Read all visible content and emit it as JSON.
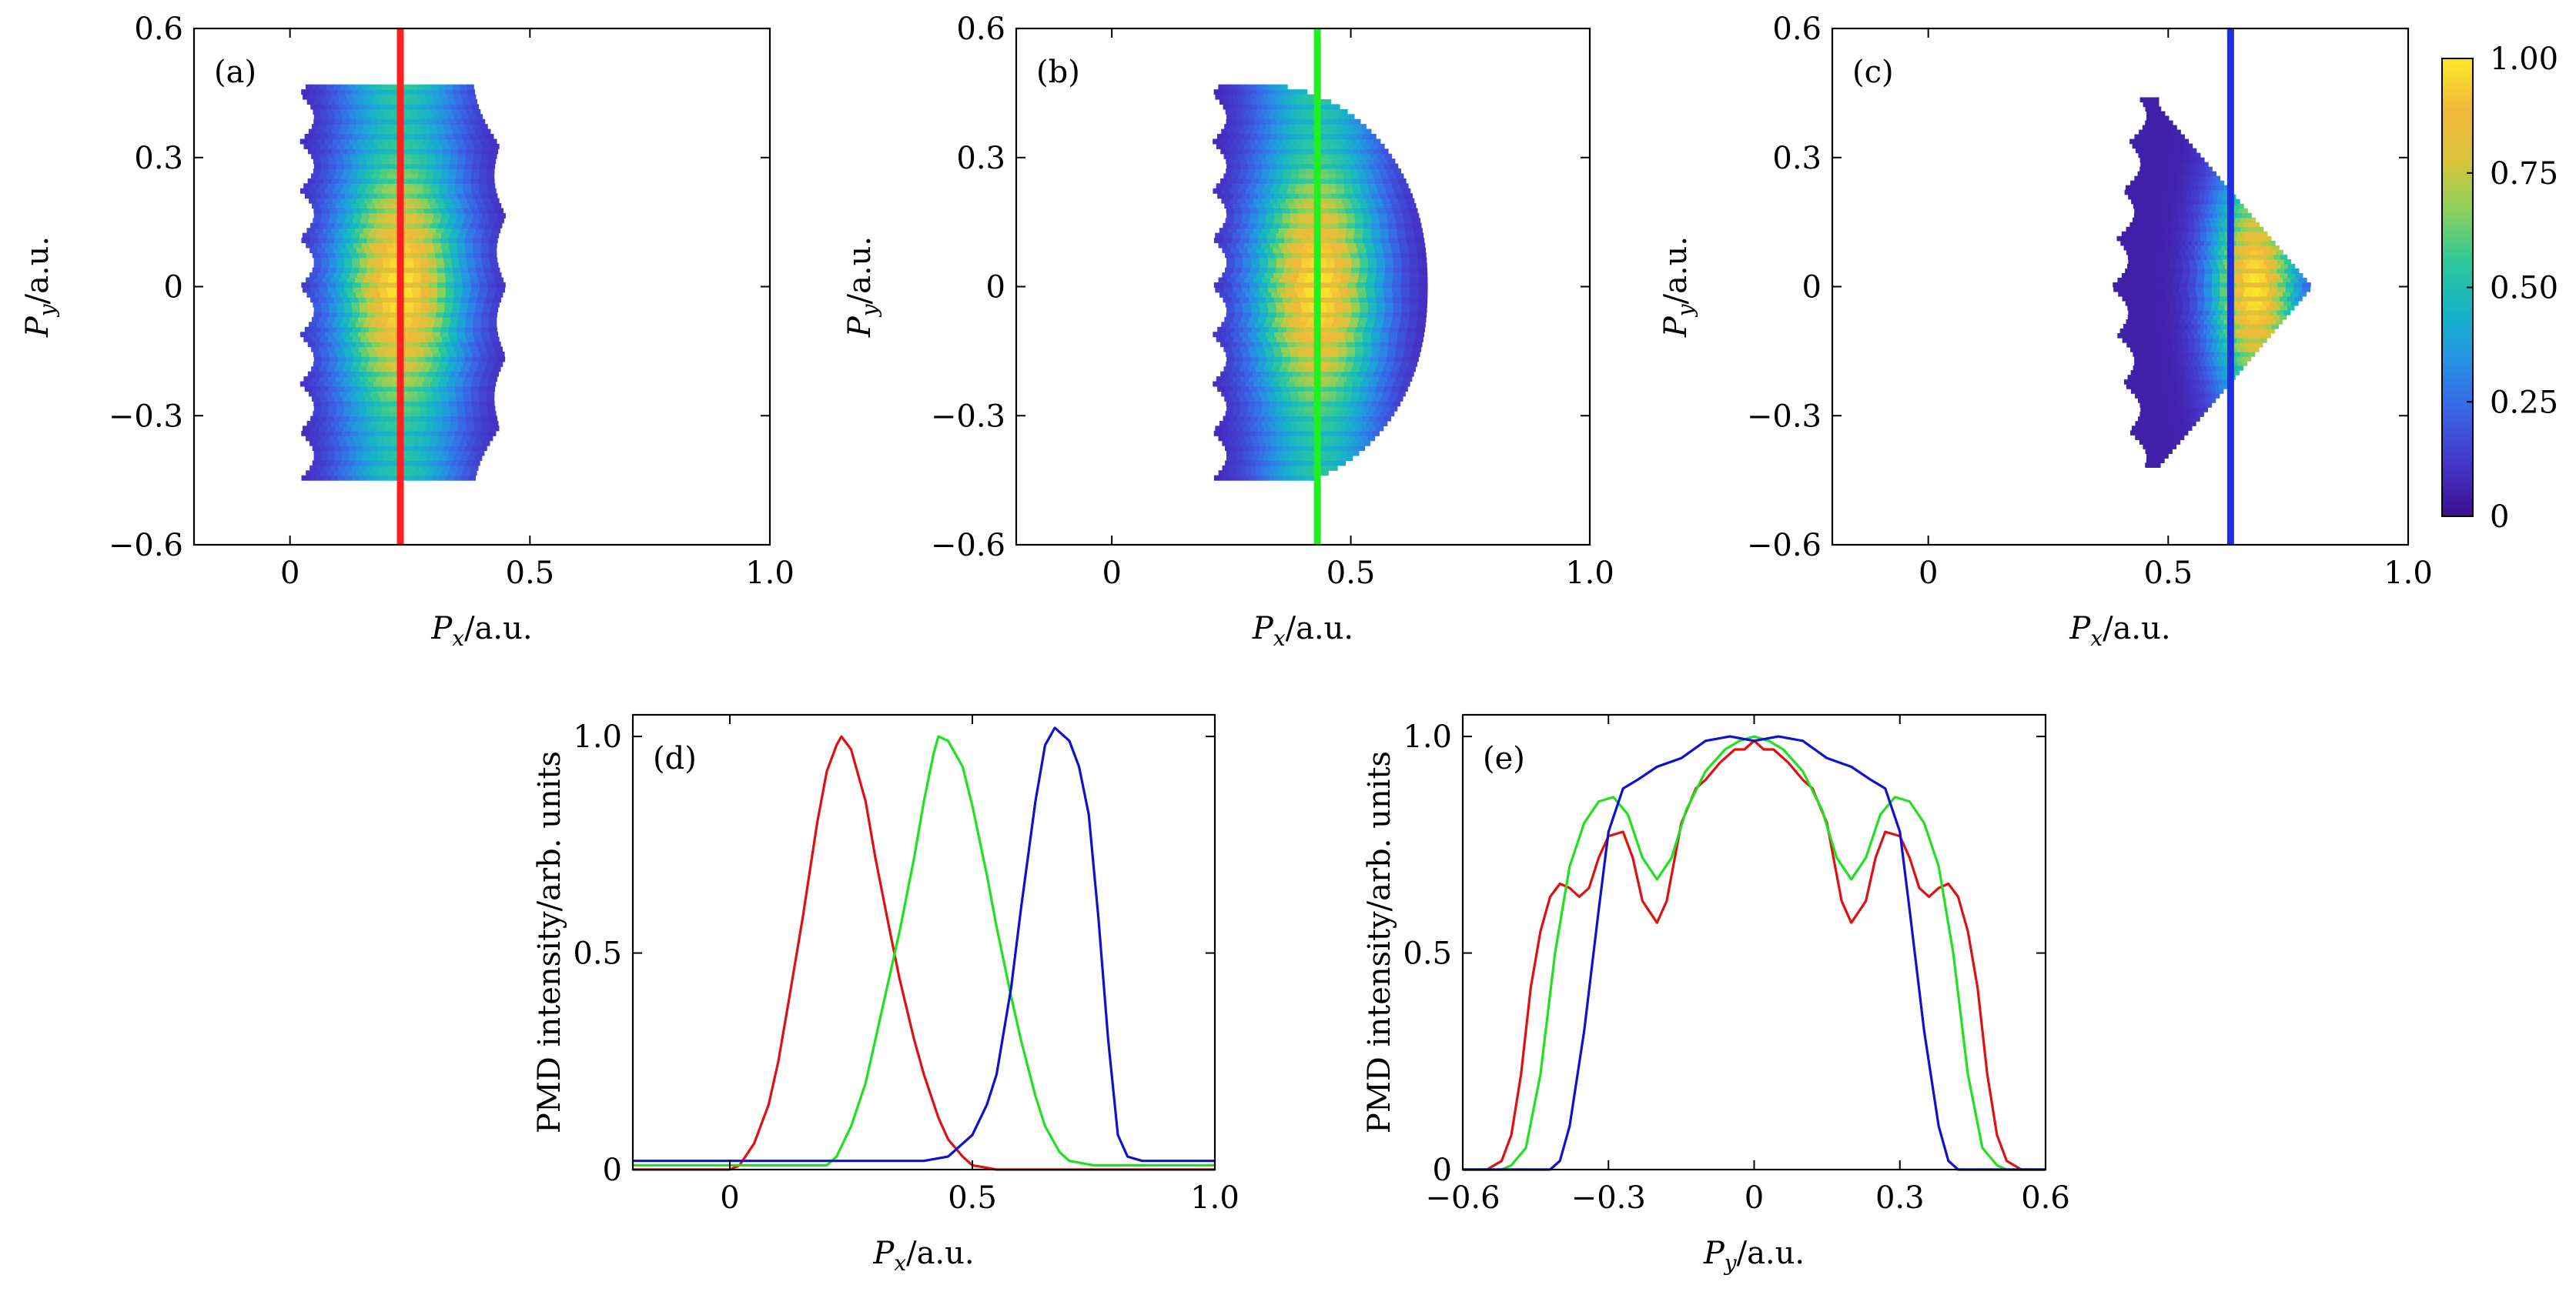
{
  "colormap_stops": [
    "#3b0f8f",
    "#4535c8",
    "#3a62e6",
    "#2890e4",
    "#16b3c8",
    "#2dc89a",
    "#8ad15c",
    "#d9c33a",
    "#f2b93a",
    "#fbe72a"
  ],
  "colorbar": {
    "tick_labels": [
      "0",
      "0.25",
      "0.50",
      "0.75",
      "1.00"
    ],
    "tick_values": [
      0,
      0.25,
      0.5,
      0.75,
      1.0
    ]
  },
  "chart_data": [
    {
      "type": "heatmap",
      "panel_label": "(a)",
      "xlabel_var": "P",
      "xlabel_sub": "x",
      "xlabel_unit": "/a.u.",
      "ylabel_var": "P",
      "ylabel_sub": "y",
      "ylabel_unit": "/a.u.",
      "xlim": [
        -0.2,
        1.0
      ],
      "ylim": [
        -0.6,
        0.6
      ],
      "xticks": [
        0,
        0.5,
        1.0
      ],
      "xtick_labels": [
        "0",
        "0.5",
        "1.0"
      ],
      "yticks": [
        -0.6,
        -0.3,
        0,
        0.3,
        0.6
      ],
      "ytick_labels": [
        "−0.6",
        "−0.3",
        "0",
        "0.3",
        "0.6"
      ],
      "cut_line_x": 0.23,
      "cut_line_color": "#ff2020",
      "distribution": {
        "left": 0.02,
        "right_at_center": 0.45,
        "height": 0.47,
        "bottom": -0.45,
        "peak_x": 0.23,
        "shape": "rounded-rect"
      }
    },
    {
      "type": "heatmap",
      "panel_label": "(b)",
      "xlabel_var": "P",
      "xlabel_sub": "x",
      "xlabel_unit": "/a.u.",
      "ylabel_var": "P",
      "ylabel_sub": "y",
      "ylabel_unit": "/a.u.",
      "xlim": [
        -0.2,
        1.0
      ],
      "ylim": [
        -0.6,
        0.6
      ],
      "xticks": [
        0,
        0.5,
        1.0
      ],
      "xtick_labels": [
        "0",
        "0.5",
        "1.0"
      ],
      "yticks": [
        -0.6,
        -0.3,
        0,
        0.3,
        0.6
      ],
      "ytick_labels": [
        "−0.6",
        "−0.3",
        "0",
        "0.3",
        "0.6"
      ],
      "cut_line_x": 0.43,
      "cut_line_color": "#20f020",
      "distribution": {
        "left": 0.21,
        "right_at_center": 0.66,
        "height": 0.47,
        "bottom": -0.45,
        "peak_x": 0.43,
        "shape": "half-oval"
      }
    },
    {
      "type": "heatmap",
      "panel_label": "(c)",
      "xlabel_var": "P",
      "xlabel_sub": "x",
      "xlabel_unit": "/a.u.",
      "ylabel_var": "P",
      "ylabel_sub": "y",
      "ylabel_unit": "/a.u.",
      "xlim": [
        -0.2,
        1.0
      ],
      "ylim": [
        -0.6,
        0.6
      ],
      "xticks": [
        0,
        0.5,
        1.0
      ],
      "xtick_labels": [
        "0",
        "0.5",
        "1.0"
      ],
      "yticks": [
        -0.6,
        -0.3,
        0,
        0.3,
        0.6
      ],
      "ytick_labels": [
        "−0.6",
        "−0.3",
        "0",
        "0.3",
        "0.6"
      ],
      "cut_line_x": 0.63,
      "cut_line_color": "#2030e0",
      "distribution": {
        "left": 0.38,
        "right_at_center": 0.8,
        "height": 0.44,
        "bottom": -0.42,
        "peak_x": 0.68,
        "shape": "triangle"
      }
    },
    {
      "type": "line",
      "panel_label": "(d)",
      "xlabel_var": "P",
      "xlabel_sub": "x",
      "xlabel_unit": "/a.u.",
      "ylabel": "PMD intensity/arb. units",
      "xlim": [
        -0.2,
        1.0
      ],
      "ylim": [
        0,
        1.05
      ],
      "xticks": [
        0,
        0.5,
        1.0
      ],
      "xtick_labels": [
        "0",
        "0.5",
        "1.0"
      ],
      "yticks": [
        0,
        0.5,
        1.0
      ],
      "ytick_labels": [
        "0",
        "0.5",
        "1.0"
      ],
      "series": [
        {
          "color": "#e01010",
          "x": [
            -0.2,
            0.0,
            0.02,
            0.05,
            0.08,
            0.1,
            0.12,
            0.15,
            0.18,
            0.2,
            0.22,
            0.23,
            0.25,
            0.28,
            0.3,
            0.33,
            0.35,
            0.38,
            0.4,
            0.43,
            0.45,
            0.48,
            0.5,
            0.55,
            0.6,
            1.0
          ],
          "y": [
            0,
            0,
            0.01,
            0.06,
            0.15,
            0.25,
            0.38,
            0.58,
            0.8,
            0.92,
            0.98,
            1.0,
            0.97,
            0.85,
            0.72,
            0.55,
            0.44,
            0.3,
            0.22,
            0.12,
            0.07,
            0.03,
            0.01,
            0,
            0,
            0
          ]
        },
        {
          "color": "#20e020",
          "x": [
            -0.2,
            0.1,
            0.2,
            0.22,
            0.25,
            0.28,
            0.3,
            0.33,
            0.35,
            0.38,
            0.4,
            0.42,
            0.43,
            0.45,
            0.48,
            0.5,
            0.53,
            0.55,
            0.58,
            0.6,
            0.63,
            0.65,
            0.68,
            0.7,
            0.75,
            1.0
          ],
          "y": [
            0.01,
            0.01,
            0.01,
            0.03,
            0.1,
            0.2,
            0.3,
            0.45,
            0.55,
            0.72,
            0.85,
            0.96,
            1.0,
            0.99,
            0.93,
            0.84,
            0.68,
            0.56,
            0.4,
            0.3,
            0.17,
            0.1,
            0.04,
            0.02,
            0.01,
            0.01
          ]
        },
        {
          "color": "#1010d0",
          "x": [
            -0.2,
            0.2,
            0.3,
            0.35,
            0.4,
            0.45,
            0.5,
            0.53,
            0.55,
            0.58,
            0.6,
            0.63,
            0.65,
            0.67,
            0.7,
            0.72,
            0.74,
            0.76,
            0.78,
            0.8,
            0.82,
            0.85,
            1.0
          ],
          "y": [
            0.02,
            0.02,
            0.02,
            0.02,
            0.02,
            0.03,
            0.08,
            0.15,
            0.22,
            0.42,
            0.6,
            0.85,
            0.98,
            1.02,
            0.99,
            0.93,
            0.82,
            0.58,
            0.3,
            0.08,
            0.03,
            0.02,
            0.02
          ]
        }
      ]
    },
    {
      "type": "line",
      "panel_label": "(e)",
      "xlabel_var": "P",
      "xlabel_sub": "y",
      "xlabel_unit": "/a.u.",
      "ylabel": "PMD intensity/arb. units",
      "xlim": [
        -0.6,
        0.6
      ],
      "ylim": [
        0,
        1.05
      ],
      "xticks": [
        -0.6,
        -0.3,
        0,
        0.3,
        0.6
      ],
      "xtick_labels": [
        "−0.6",
        "−0.3",
        "0",
        "0.3",
        "0.6"
      ],
      "yticks": [
        0,
        0.5,
        1.0
      ],
      "ytick_labels": [
        "0",
        "0.5",
        "1.0"
      ],
      "series": [
        {
          "color": "#e01010",
          "x": [
            -0.6,
            -0.55,
            -0.52,
            -0.5,
            -0.48,
            -0.46,
            -0.44,
            -0.42,
            -0.4,
            -0.38,
            -0.36,
            -0.34,
            -0.32,
            -0.3,
            -0.27,
            -0.25,
            -0.23,
            -0.2,
            -0.18,
            -0.15,
            -0.12,
            -0.1,
            -0.07,
            -0.04,
            -0.02,
            0,
            0.02,
            0.04,
            0.07,
            0.1,
            0.12,
            0.15,
            0.18,
            0.2,
            0.23,
            0.25,
            0.27,
            0.3,
            0.32,
            0.34,
            0.36,
            0.38,
            0.4,
            0.42,
            0.44,
            0.46,
            0.48,
            0.5,
            0.52,
            0.55,
            0.6
          ],
          "y": [
            0,
            0,
            0.02,
            0.08,
            0.22,
            0.42,
            0.55,
            0.63,
            0.66,
            0.65,
            0.63,
            0.65,
            0.72,
            0.77,
            0.78,
            0.72,
            0.62,
            0.57,
            0.62,
            0.8,
            0.88,
            0.9,
            0.94,
            0.97,
            0.97,
            0.99,
            0.97,
            0.97,
            0.94,
            0.9,
            0.88,
            0.8,
            0.62,
            0.57,
            0.62,
            0.72,
            0.78,
            0.77,
            0.72,
            0.65,
            0.63,
            0.65,
            0.66,
            0.63,
            0.55,
            0.42,
            0.22,
            0.08,
            0.02,
            0,
            0
          ]
        },
        {
          "color": "#20e020",
          "x": [
            -0.6,
            -0.52,
            -0.5,
            -0.47,
            -0.44,
            -0.41,
            -0.38,
            -0.35,
            -0.32,
            -0.29,
            -0.26,
            -0.23,
            -0.2,
            -0.17,
            -0.14,
            -0.1,
            -0.06,
            -0.03,
            0,
            0.03,
            0.06,
            0.1,
            0.14,
            0.17,
            0.2,
            0.23,
            0.26,
            0.29,
            0.32,
            0.35,
            0.38,
            0.41,
            0.44,
            0.47,
            0.5,
            0.52,
            0.6
          ],
          "y": [
            0,
            0,
            0.01,
            0.05,
            0.22,
            0.5,
            0.7,
            0.8,
            0.85,
            0.86,
            0.82,
            0.72,
            0.67,
            0.72,
            0.83,
            0.92,
            0.97,
            0.99,
            1.0,
            0.99,
            0.97,
            0.92,
            0.83,
            0.72,
            0.67,
            0.72,
            0.82,
            0.86,
            0.85,
            0.8,
            0.7,
            0.5,
            0.22,
            0.05,
            0.01,
            0,
            0
          ]
        },
        {
          "color": "#1010d0",
          "x": [
            -0.6,
            -0.42,
            -0.4,
            -0.38,
            -0.35,
            -0.32,
            -0.3,
            -0.27,
            -0.24,
            -0.2,
            -0.15,
            -0.1,
            -0.05,
            0,
            0.05,
            0.1,
            0.15,
            0.2,
            0.24,
            0.27,
            0.3,
            0.32,
            0.35,
            0.38,
            0.4,
            0.42,
            0.6
          ],
          "y": [
            0,
            0,
            0.02,
            0.1,
            0.32,
            0.6,
            0.78,
            0.88,
            0.9,
            0.93,
            0.95,
            0.99,
            1.0,
            0.99,
            1.0,
            0.99,
            0.95,
            0.93,
            0.9,
            0.88,
            0.78,
            0.6,
            0.32,
            0.1,
            0.02,
            0,
            0
          ]
        }
      ]
    }
  ]
}
